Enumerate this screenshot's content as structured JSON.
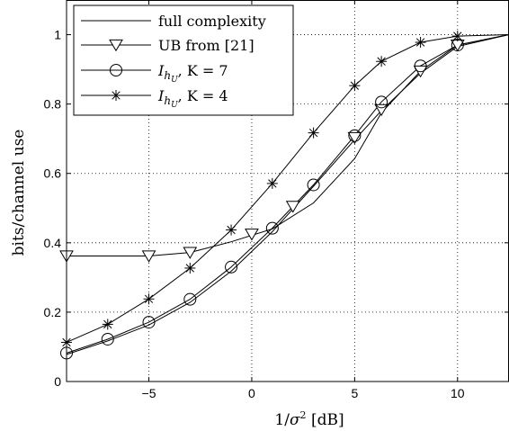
{
  "chart_data": {
    "type": "line",
    "title": "",
    "xlabel": "1/σ² [dB]",
    "ylabel": "bits/channel use",
    "xlim": [
      -9,
      12.5
    ],
    "ylim": [
      0,
      1.1
    ],
    "x_ticks": [
      "−5",
      "0",
      "5",
      "10"
    ],
    "x_tick_values": [
      -5,
      0,
      5,
      10
    ],
    "y_ticks": [
      "0",
      "0.2",
      "0.4",
      "0.6",
      "0.8",
      "1"
    ],
    "y_tick_values": [
      0,
      0.2,
      0.4,
      0.6,
      0.8,
      1.0
    ],
    "grid": true,
    "grid_style": "dotted",
    "legend_position": "top-left",
    "series": [
      {
        "name": "full complexity",
        "marker": "none",
        "x": [
          -9,
          -7,
          -5,
          -3,
          -1,
          1,
          3,
          5,
          6.3,
          8.2,
          10,
          12.5
        ],
        "y": [
          0.078,
          0.117,
          0.163,
          0.228,
          0.318,
          0.432,
          0.563,
          0.697,
          0.781,
          0.889,
          0.966,
          1.0
        ]
      },
      {
        "name": "UB from [21]",
        "marker": "triangle-down",
        "x": [
          -9,
          -5,
          -3,
          -1,
          1,
          3,
          5,
          6.3,
          8.2,
          10,
          12.5
        ],
        "y": [
          0.362,
          0.362,
          0.372,
          0.403,
          0.44,
          0.515,
          0.643,
          0.775,
          0.895,
          0.97,
          1.0
        ],
        "marker_x": [
          -9,
          -5,
          -3,
          0,
          2,
          5,
          6.3,
          8.2,
          10
        ],
        "marker_y": [
          0.362,
          0.362,
          0.372,
          0.425,
          0.505,
          0.703,
          0.784,
          0.895,
          0.97
        ]
      },
      {
        "name": "I_{h_U}, K = 7",
        "legend_main": "I",
        "legend_sub": "h",
        "legend_subsub": "U",
        "legend_rest": ", K = 7",
        "marker": "circle",
        "x": [
          -9,
          -7,
          -5,
          -3,
          -1,
          1,
          3,
          5,
          6.3,
          8.2,
          10,
          12.5
        ],
        "y": [
          0.082,
          0.122,
          0.171,
          0.237,
          0.33,
          0.442,
          0.567,
          0.709,
          0.806,
          0.91,
          0.97,
          1.0
        ],
        "marker_x": [
          -9,
          -7,
          -5,
          -3,
          -1,
          1,
          3,
          5,
          6.3,
          8.2,
          10
        ],
        "marker_y": [
          0.082,
          0.122,
          0.171,
          0.237,
          0.33,
          0.442,
          0.567,
          0.709,
          0.806,
          0.91,
          0.97
        ]
      },
      {
        "name": "I_{h_U}, K = 4",
        "legend_main": "I",
        "legend_sub": "h",
        "legend_subsub": "U",
        "legend_rest": ", K = 4",
        "marker": "star",
        "x": [
          -9,
          -7,
          -5,
          -3,
          -1,
          1,
          3,
          5,
          6.3,
          8.2,
          10,
          12.5
        ],
        "y": [
          0.113,
          0.165,
          0.238,
          0.327,
          0.437,
          0.571,
          0.717,
          0.853,
          0.923,
          0.978,
          0.996,
          1.0
        ],
        "marker_x": [
          -9,
          -7,
          -5,
          -3,
          -1,
          1,
          3,
          5,
          6.3,
          8.2,
          10
        ],
        "marker_y": [
          0.113,
          0.165,
          0.238,
          0.327,
          0.437,
          0.571,
          0.717,
          0.853,
          0.923,
          0.978,
          0.996
        ]
      }
    ]
  }
}
